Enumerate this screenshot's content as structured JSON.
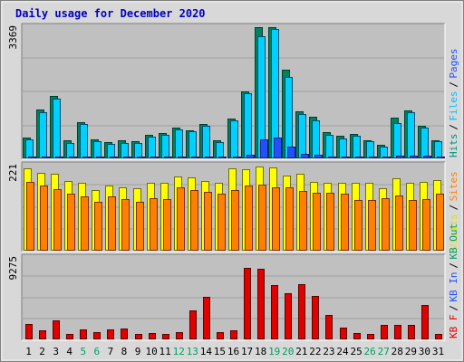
{
  "title": "Daily usage for December 2020",
  "colors": {
    "title": "#0000c0",
    "bg_outer": "#d8d8d8",
    "panel_bg": "#c0c0c0",
    "hits": "#009080",
    "files": "#00c0ff",
    "pages": "#2050ff",
    "visits": "#ffff00",
    "sites": "#ff8000",
    "kb": "#e00000",
    "weekend": "#00a060",
    "weekday": "#000000"
  },
  "chart_data": {
    "type": "bar",
    "categories": [
      "1",
      "2",
      "3",
      "4",
      "5",
      "6",
      "7",
      "8",
      "9",
      "10",
      "11",
      "12",
      "13",
      "14",
      "15",
      "16",
      "17",
      "18",
      "19",
      "20",
      "21",
      "22",
      "23",
      "24",
      "25",
      "26",
      "27",
      "28",
      "29",
      "30",
      "31"
    ],
    "weekend_days": [
      "5",
      "6",
      "12",
      "13",
      "19",
      "20",
      "26",
      "27"
    ],
    "panels": [
      {
        "id": "top",
        "ymax_label": "3369",
        "ymax": 3369,
        "right_labels": [
          {
            "text": "Hits",
            "color": "#009080"
          },
          {
            "text": "Files",
            "color": "#00c0ff"
          },
          {
            "text": "Pages",
            "color": "#2050ff"
          }
        ],
        "series": [
          {
            "name": "Hits",
            "values": [
              520,
              1230,
              1580,
              440,
              910,
              460,
              390,
              440,
              430,
              590,
              630,
              780,
              710,
              870,
              450,
              1000,
              1700,
              3360,
              3360,
              2280,
              1200,
              1050,
              650,
              560,
              600,
              440,
              320,
              1020,
              1220,
              830,
              440
            ]
          },
          {
            "name": "Files",
            "values": [
              460,
              1170,
              1530,
              380,
              860,
              410,
              340,
              380,
              370,
              540,
              580,
              730,
              670,
              820,
              400,
              950,
              1660,
              3130,
              3330,
              2080,
              1120,
              960,
              580,
              490,
              560,
              410,
              270,
              880,
              1180,
              780,
              410
            ]
          },
          {
            "name": "Pages",
            "values": [
              20,
              30,
              30,
              15,
              30,
              20,
              15,
              20,
              15,
              20,
              25,
              30,
              25,
              30,
              20,
              30,
              80,
              470,
              510,
              290,
              90,
              60,
              30,
              20,
              30,
              20,
              15,
              40,
              40,
              40,
              20
            ]
          }
        ]
      },
      {
        "id": "middle",
        "ymax_label": "221",
        "ymax": 221,
        "right_labels": [
          {
            "text": "Visits",
            "color": "#e0e000"
          },
          {
            "text": "Sites",
            "color": "#ff8000"
          }
        ],
        "series": [
          {
            "name": "Visits",
            "values": [
              215,
              201,
              200,
              181,
              175,
              157,
              168,
              165,
              162,
              176,
              176,
              192,
              191,
              180,
              175,
              213,
              212,
              218,
              217,
              196,
              199,
              178,
              177,
              177,
              176,
              176,
              161,
              188,
              177,
              178,
              184
            ]
          },
          {
            "name": "Sites",
            "values": [
              179,
              169,
              159,
              147,
              140,
              127,
              141,
              133,
              126,
              135,
              134,
              165,
              158,
              152,
              148,
              156,
              168,
              170,
              163,
              164,
              155,
              149,
              149,
              148,
              130,
              130,
              136,
              143,
              131,
              133,
              147
            ]
          }
        ]
      },
      {
        "id": "bottom",
        "ymax_label": "9275",
        "ymax": 9275,
        "right_labels": [
          {
            "text": "KB F",
            "color": "#e00000"
          },
          {
            "text": "KB In",
            "color": "#2050ff"
          },
          {
            "text": "KB Out",
            "color": "#00a060"
          }
        ],
        "series": [
          {
            "name": "KB F",
            "values": [
              1670,
              960,
              2110,
              540,
              1080,
              690,
              1070,
              1160,
              570,
              620,
              570,
              750,
              3230,
              4780,
              690,
              900,
              8160,
              7980,
              6150,
              5180,
              6270,
              4900,
              2680,
              1280,
              580,
              570,
              1540,
              1560,
              1520,
              3900,
              540
            ]
          }
        ]
      }
    ]
  }
}
